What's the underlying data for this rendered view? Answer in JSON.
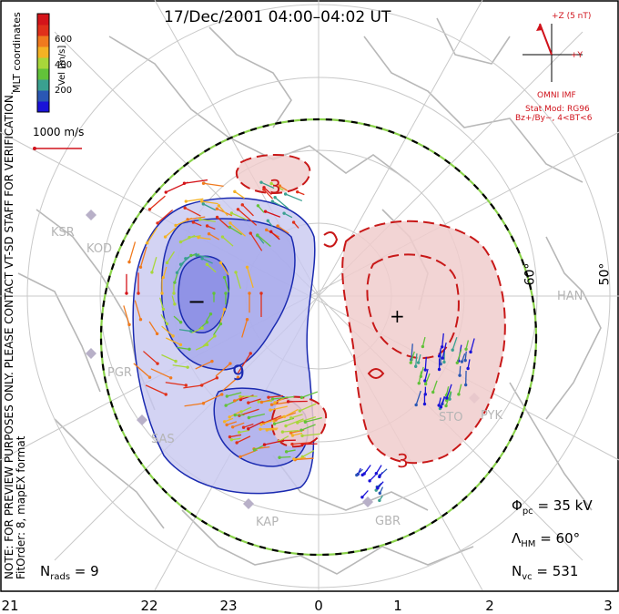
{
  "title": "17/Dec/2001 04:00–04:02 UT",
  "side_note": {
    "line1": "NOTE: FOR PREVIEW PURPOSES ONLY. PLEASE CONTACT VT-SD STAFF FOR VERIFICATION.",
    "line2": "FitOrder: 8, mapEX format"
  },
  "coords_label": "MLT coordinates",
  "colorbar": {
    "label": "Vel [m/s]",
    "ticks": [
      "600",
      "400",
      "200"
    ],
    "colors": [
      "#1a12d8",
      "#2a57b4",
      "#3aa090",
      "#62c23a",
      "#a8d63a",
      "#f4b224",
      "#f07a1e",
      "#e0301a",
      "#d4141a"
    ]
  },
  "vector_scale": "1000 m/s",
  "imf": {
    "z_label": "+Z (5 nT)",
    "y_label": "+Y",
    "source": "OMNI IMF",
    "stat_mod": "Stat Mod: RG96",
    "condition": "Bz+/By−, 4<BT<6"
  },
  "stats": {
    "phi_sym": "Φ",
    "phi_sub": "pc",
    "phi_val": " = 35 kV",
    "lam_sym": "Λ",
    "lam_sub": "HM",
    "lam_val": " = 60°",
    "nvc_sym": "N",
    "nvc_sub": "vc",
    "nvc_val": " = 531",
    "nrads_sym": "N",
    "nrads_sub": "rads",
    "nrads_val": " = 9"
  },
  "contour_labels": [
    "3",
    "9",
    "3"
  ],
  "latitude_labels": [
    "60°",
    "50°"
  ],
  "stations": [
    "KSR",
    "KOD",
    "PGR",
    "SAS",
    "KAP",
    "GBR",
    "HAN",
    "STO",
    "PYK"
  ],
  "mlt_ticks": [
    "21",
    "22",
    "23",
    "0",
    "1",
    "2",
    "3"
  ],
  "potential": {
    "dusk_cell_sign": "−",
    "dawn_cell_sign": "+"
  }
}
